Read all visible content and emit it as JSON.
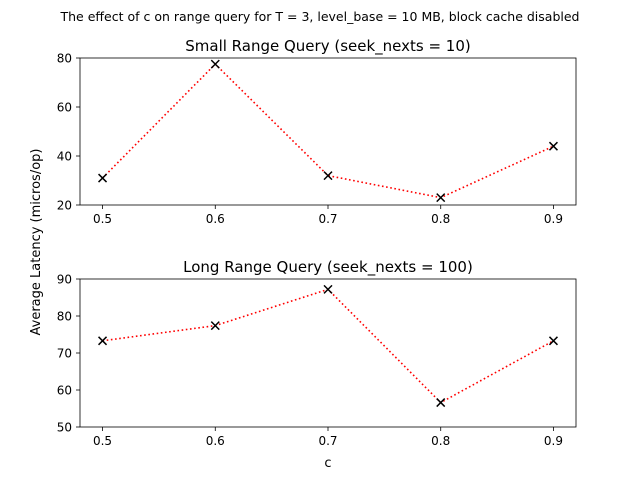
{
  "figure": {
    "suptitle": "The effect of c on range query for T = 3, level_base = 10 MB, block cache disabled",
    "shared_ylabel": "Average Latency (micros/op)",
    "shared_xlabel": "c"
  },
  "chart_data": [
    {
      "type": "line",
      "title": "Small Range Query (seek_nexts = 10)",
      "xlabel": "",
      "ylabel": "Average Latency (micros/op)",
      "x": [
        0.5,
        0.6,
        0.7,
        0.8,
        0.9
      ],
      "x_tick_labels": [
        "0.5",
        "0.6",
        "0.7",
        "0.8",
        "0.9"
      ],
      "xlim": [
        0.48,
        0.92
      ],
      "ylim": [
        20,
        80
      ],
      "y_ticks": [
        20,
        40,
        60,
        80
      ],
      "grid": false,
      "series": [
        {
          "values": [
            31,
            77.5,
            32,
            23,
            44
          ],
          "line_color": "#ff0000",
          "line_style": "dotted",
          "marker": "x",
          "marker_color": "#000000"
        }
      ]
    },
    {
      "type": "line",
      "title": "Long Range Query (seek_nexts = 100)",
      "xlabel": "c",
      "ylabel": "Average Latency (micros/op)",
      "x": [
        0.5,
        0.6,
        0.7,
        0.8,
        0.9
      ],
      "x_tick_labels": [
        "0.5",
        "0.6",
        "0.7",
        "0.8",
        "0.9"
      ],
      "xlim": [
        0.48,
        0.92
      ],
      "ylim": [
        50,
        90
      ],
      "y_ticks": [
        50,
        60,
        70,
        80,
        90
      ],
      "grid": false,
      "series": [
        {
          "values": [
            73.3,
            77.4,
            87.2,
            56.6,
            73.3
          ],
          "line_color": "#ff0000",
          "line_style": "dotted",
          "marker": "x",
          "marker_color": "#000000"
        }
      ]
    }
  ]
}
